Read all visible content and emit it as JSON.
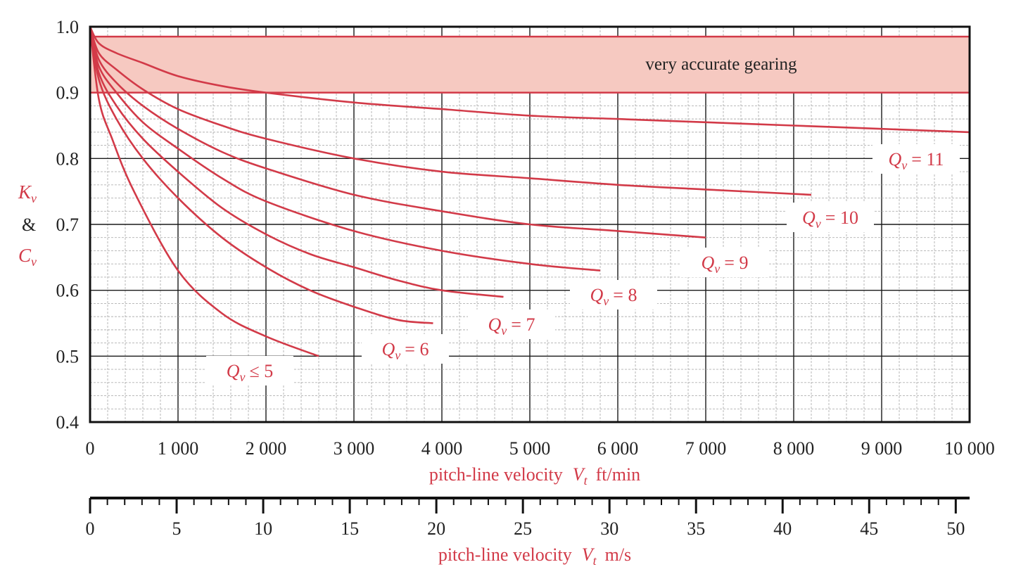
{
  "chart_data": {
    "type": "line",
    "title": "",
    "colors": {
      "curve": "#d23a48",
      "band_fill": "#f6c9c1",
      "grid_major": "#1a1a1a",
      "grid_minor": "#b0b0b0",
      "axis": "#111111"
    },
    "y_axis": {
      "range": [
        0.4,
        1.0
      ],
      "ticks": [
        "1.0",
        "0.9",
        "0.8",
        "0.7",
        "0.6",
        "0.5",
        "0.4"
      ],
      "tick_values": [
        1.0,
        0.9,
        0.8,
        0.7,
        0.6,
        0.5,
        0.4
      ],
      "label_top": "K",
      "label_top_sub": "v",
      "label_mid": "&",
      "label_bottom": "C",
      "label_bottom_sub": "v"
    },
    "x_axis_ftmin": {
      "range": [
        0,
        10000
      ],
      "ticks": [
        "0",
        "1 000",
        "2 000",
        "3 000",
        "4 000",
        "5 000",
        "6 000",
        "7 000",
        "8 000",
        "9 000",
        "10 000"
      ],
      "tick_values": [
        0,
        1000,
        2000,
        3000,
        4000,
        5000,
        6000,
        7000,
        8000,
        9000,
        10000
      ],
      "title": "pitch-line velocity",
      "title_var": "V",
      "title_sub": "t",
      "title_unit": "ft/min"
    },
    "x_axis_ms": {
      "range": [
        0,
        50.8
      ],
      "ticks": [
        "0",
        "5",
        "10",
        "15",
        "20",
        "25",
        "30",
        "35",
        "40",
        "45",
        "50"
      ],
      "tick_values": [
        0,
        5,
        10,
        15,
        20,
        25,
        30,
        35,
        40,
        45,
        50
      ],
      "title": "pitch-line velocity",
      "title_var": "V",
      "title_sub": "t",
      "title_unit": "m/s"
    },
    "band": {
      "y_low": 0.9,
      "y_high": 0.985,
      "label": "very accurate gearing"
    },
    "series": [
      {
        "name": "Qv ≤ 5",
        "label_var": "Q",
        "label_sub": "v",
        "label_rel": "≤ 5",
        "x_max": 2600,
        "points": [
          [
            0,
            1.0
          ],
          [
            100,
            0.89
          ],
          [
            250,
            0.83
          ],
          [
            500,
            0.75
          ],
          [
            1000,
            0.63
          ],
          [
            1500,
            0.565
          ],
          [
            2000,
            0.53
          ],
          [
            2600,
            0.5
          ]
        ]
      },
      {
        "name": "Qv = 6",
        "label_var": "Q",
        "label_sub": "v",
        "label_rel": "= 6",
        "x_max": 3900,
        "points": [
          [
            0,
            1.0
          ],
          [
            100,
            0.92
          ],
          [
            300,
            0.86
          ],
          [
            600,
            0.8
          ],
          [
            1000,
            0.74
          ],
          [
            1500,
            0.68
          ],
          [
            2000,
            0.635
          ],
          [
            2500,
            0.6
          ],
          [
            3000,
            0.575
          ],
          [
            3500,
            0.555
          ],
          [
            3900,
            0.55
          ]
        ]
      },
      {
        "name": "Qv = 7",
        "label_var": "Q",
        "label_sub": "v",
        "label_rel": "= 7",
        "x_max": 4700,
        "points": [
          [
            0,
            1.0
          ],
          [
            100,
            0.93
          ],
          [
            300,
            0.88
          ],
          [
            600,
            0.83
          ],
          [
            1000,
            0.78
          ],
          [
            1500,
            0.725
          ],
          [
            2000,
            0.685
          ],
          [
            2500,
            0.655
          ],
          [
            3000,
            0.635
          ],
          [
            3500,
            0.615
          ],
          [
            4000,
            0.6
          ],
          [
            4700,
            0.59
          ]
        ]
      },
      {
        "name": "Qv = 8",
        "label_var": "Q",
        "label_sub": "v",
        "label_rel": "= 8",
        "x_max": 5800,
        "points": [
          [
            0,
            1.0
          ],
          [
            100,
            0.94
          ],
          [
            300,
            0.9
          ],
          [
            600,
            0.855
          ],
          [
            1000,
            0.815
          ],
          [
            1500,
            0.77
          ],
          [
            2000,
            0.735
          ],
          [
            3000,
            0.69
          ],
          [
            4000,
            0.66
          ],
          [
            5000,
            0.64
          ],
          [
            5800,
            0.63
          ]
        ]
      },
      {
        "name": "Qv = 9",
        "label_var": "Q",
        "label_sub": "v",
        "label_rel": "= 9",
        "x_max": 7000,
        "points": [
          [
            0,
            1.0
          ],
          [
            100,
            0.95
          ],
          [
            300,
            0.915
          ],
          [
            600,
            0.88
          ],
          [
            1000,
            0.845
          ],
          [
            1500,
            0.81
          ],
          [
            2000,
            0.785
          ],
          [
            3000,
            0.745
          ],
          [
            4000,
            0.72
          ],
          [
            5000,
            0.7
          ],
          [
            6000,
            0.69
          ],
          [
            7000,
            0.68
          ]
        ]
      },
      {
        "name": "Qv = 10",
        "label_var": "Q",
        "label_sub": "v",
        "label_rel": "= 10",
        "x_max": 8200,
        "points": [
          [
            0,
            1.0
          ],
          [
            100,
            0.96
          ],
          [
            300,
            0.935
          ],
          [
            600,
            0.905
          ],
          [
            1000,
            0.875
          ],
          [
            1500,
            0.85
          ],
          [
            2000,
            0.83
          ],
          [
            3000,
            0.8
          ],
          [
            4000,
            0.78
          ],
          [
            5000,
            0.77
          ],
          [
            6000,
            0.76
          ],
          [
            7000,
            0.753
          ],
          [
            8200,
            0.745
          ]
        ]
      },
      {
        "name": "Qv = 11",
        "label_var": "Q",
        "label_sub": "v",
        "label_rel": "= 11",
        "x_max": 10000,
        "points": [
          [
            0,
            1.0
          ],
          [
            100,
            0.975
          ],
          [
            300,
            0.96
          ],
          [
            600,
            0.945
          ],
          [
            1000,
            0.925
          ],
          [
            1500,
            0.91
          ],
          [
            2000,
            0.9
          ],
          [
            3000,
            0.885
          ],
          [
            4000,
            0.875
          ],
          [
            5000,
            0.865
          ],
          [
            6000,
            0.86
          ],
          [
            7000,
            0.855
          ],
          [
            8000,
            0.85
          ],
          [
            9000,
            0.845
          ],
          [
            10000,
            0.84
          ]
        ]
      }
    ]
  }
}
